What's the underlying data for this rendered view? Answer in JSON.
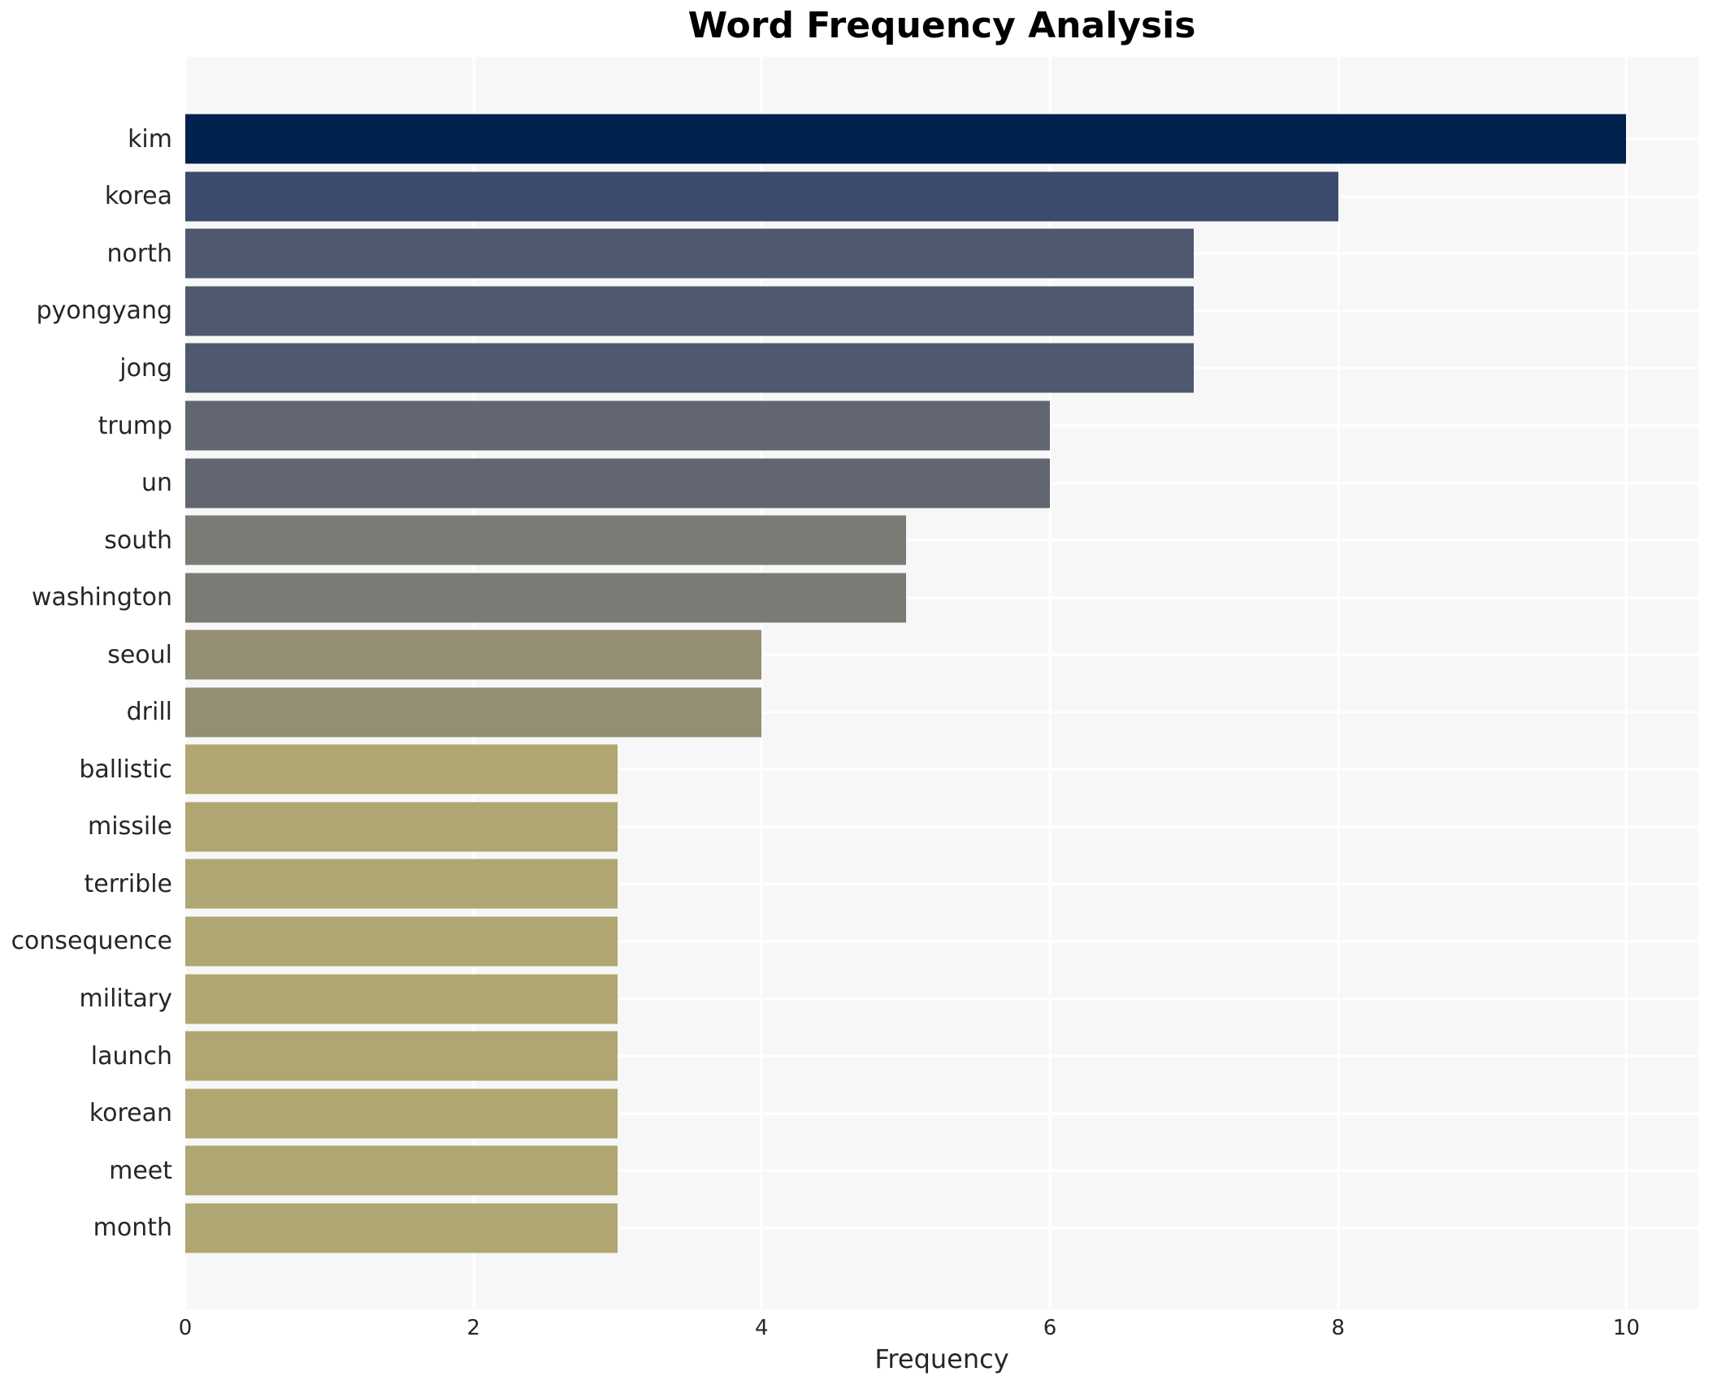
{
  "title": "Word Frequency Analysis",
  "chart_data": {
    "type": "bar",
    "orientation": "horizontal",
    "title": "Word Frequency Analysis",
    "xlabel": "Frequency",
    "ylabel": "",
    "categories": [
      "kim",
      "korea",
      "north",
      "pyongyang",
      "jong",
      "trump",
      "un",
      "south",
      "washington",
      "seoul",
      "drill",
      "ballistic",
      "missile",
      "terrible",
      "consequence",
      "military",
      "launch",
      "korean",
      "meet",
      "month"
    ],
    "values": [
      10,
      8,
      7,
      7,
      7,
      6,
      6,
      5,
      5,
      4,
      4,
      3,
      3,
      3,
      3,
      3,
      3,
      3,
      3,
      3
    ],
    "bar_colors": [
      "#00224e",
      "#3c4a6e",
      "#4e586e",
      "#4e586e",
      "#4e586e",
      "#626670",
      "#626670",
      "#7b7a74",
      "#7b7a74",
      "#948e74",
      "#948e74",
      "#b0a671",
      "#b0a671",
      "#b0a671",
      "#b0a671",
      "#b0a671",
      "#b0a671",
      "#b0a671",
      "#b0a671",
      "#b0a671"
    ],
    "xlim": [
      0,
      10.5
    ],
    "xticks": [
      0,
      2,
      4,
      6,
      8,
      10
    ],
    "grid": true,
    "legend": false,
    "plot_background": "#f7f7f7",
    "grid_color": "#ffffff",
    "text_color": "#262626",
    "title_color": "#000000"
  }
}
